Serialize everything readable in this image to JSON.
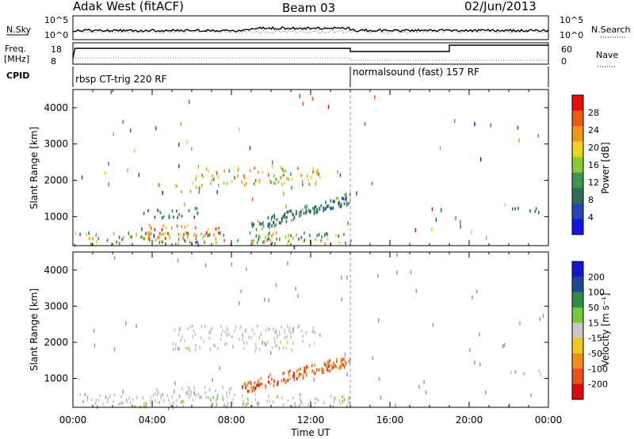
{
  "header": {
    "radar": "Adak West (fitACF)",
    "beam": "Beam 03",
    "date": "02/Jun/2013"
  },
  "top_panels": {
    "nsky_label": "N.Sky",
    "nsearch_label": "N.Search",
    "count_ticks": [
      "10^5",
      "10^0"
    ],
    "freq_label_1": "Freq.",
    "freq_label_2": "[MHz]",
    "freq_ticks": [
      "18",
      "8"
    ],
    "nave_label": "Nave",
    "nave_ticks": [
      "60",
      "0"
    ],
    "cpid_label": "CPID",
    "cpid_segments": [
      {
        "name": "rbsp CT-trig 220 RF",
        "start_h": 0.0,
        "end_h": 14.0
      },
      {
        "name": "normalsound (fast) 157 RF",
        "start_h": 14.0,
        "end_h": 24.0
      }
    ]
  },
  "x_axis": {
    "label": "Time UT",
    "ticks": [
      "00:00",
      "04:00",
      "08:00",
      "12:00",
      "16:00",
      "20:00",
      "00:00"
    ]
  },
  "colors": {
    "power": [
      "#1414e6",
      "#2846b4",
      "#2d6e5a",
      "#3c9650",
      "#8cc83c",
      "#f0d21e",
      "#f0961e",
      "#f05a14",
      "#e60f0f"
    ],
    "velocity": [
      "#1414d2",
      "#1e4696",
      "#2d8c46",
      "#78c83c",
      "#c8c8c8",
      "#f0c81e",
      "#f08c1e",
      "#f0501e",
      "#dc0a0a"
    ],
    "gray_scatter": "#c0c0c0"
  },
  "chart_data": [
    {
      "type": "heatmap",
      "title": "Power",
      "xlabel": "",
      "ylabel": "Slant Range [km]",
      "xlim_hours": [
        0,
        24
      ],
      "ylim_km": [
        200,
        4500
      ],
      "yticks": [
        "1000",
        "2000",
        "3000",
        "4000"
      ],
      "colorbar": {
        "label": "Power [dB]",
        "ticks": [
          "4",
          "8",
          "12",
          "16",
          "20",
          "24",
          "28"
        ],
        "range": [
          0,
          30
        ]
      },
      "features": [
        {
          "t": [
            0.0,
            14.0
          ],
          "r": [
            250,
            600
          ],
          "v": [
            6,
            24
          ],
          "note": "near-range scatter"
        },
        {
          "t": [
            3.5,
            7.8
          ],
          "r": [
            400,
            800
          ],
          "v": [
            16,
            30
          ]
        },
        {
          "t": [
            3.5,
            6.5
          ],
          "r": [
            1000,
            1300
          ],
          "v": [
            4,
            14
          ]
        },
        {
          "t": [
            5.0,
            6.5
          ],
          "r": [
            1700,
            1900
          ],
          "v": [
            10,
            24
          ]
        },
        {
          "t": [
            6.0,
            12.5
          ],
          "r": [
            1900,
            2400
          ],
          "v": [
            12,
            26
          ]
        },
        {
          "t": [
            9.0,
            14.0
          ],
          "r": [
            700,
            1700
          ],
          "v": [
            4,
            14
          ],
          "note": "rising band"
        },
        {
          "t": [
            21.8,
            23.6
          ],
          "r": [
            1150,
            1300
          ],
          "v": [
            4,
            12
          ]
        }
      ]
    },
    {
      "type": "heatmap",
      "title": "Velocity",
      "xlabel": "Time UT",
      "ylabel": "Slant Range [km]",
      "xlim_hours": [
        0,
        24
      ],
      "ylim_km": [
        200,
        4500
      ],
      "yticks": [
        "1000",
        "2000",
        "3000",
        "4000"
      ],
      "colorbar": {
        "label": "Velocity [m s⁻¹]",
        "ticks": [
          "200",
          "100",
          "50",
          "15",
          "-15",
          "-50",
          "-100",
          "-200"
        ],
        "range": [
          -250,
          250
        ]
      },
      "features": [
        {
          "t": [
            0.0,
            14.0
          ],
          "r": [
            250,
            600
          ],
          "v": [
            -15,
            50
          ]
        },
        {
          "t": [
            4.0,
            8.0
          ],
          "r": [
            400,
            800
          ],
          "v": [
            -15,
            15
          ]
        },
        {
          "t": [
            5.0,
            12.5
          ],
          "r": [
            1800,
            2500
          ],
          "v": [
            -30,
            15
          ]
        },
        {
          "t": [
            8.5,
            14.0
          ],
          "r": [
            700,
            1700
          ],
          "v": [
            -220,
            -80
          ],
          "note": "strong negative band"
        },
        {
          "t": [
            21.8,
            23.6
          ],
          "r": [
            1150,
            1300
          ],
          "v": [
            -20,
            30
          ]
        }
      ]
    }
  ]
}
